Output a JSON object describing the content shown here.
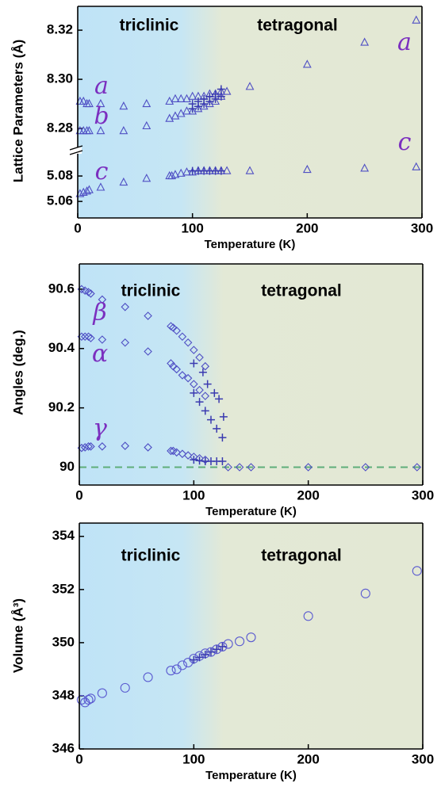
{
  "chart_data": [
    {
      "type": "scatter",
      "ylabel": "Lattice Parameters (Å)",
      "xlim": [
        0,
        300
      ],
      "ylim": [
        8.271,
        8.3297
      ],
      "yticks": [
        8.28,
        {
          "value": 8.3,
          "label": "8.30"
        },
        8.32
      ],
      "regions": [
        "triclinic",
        "tetragonal"
      ],
      "transition": 120,
      "annotations": [
        "a",
        "b",
        "a"
      ],
      "series": [
        {
          "marker": "triangle",
          "color": "#4f4fc4",
          "x": [
            2,
            5,
            8,
            10,
            20,
            40,
            60,
            80,
            85,
            90,
            95,
            100,
            105,
            110,
            115,
            120,
            125,
            130,
            150,
            200,
            250,
            295
          ],
          "values": [
            8.291,
            8.291,
            8.29,
            8.29,
            8.29,
            8.289,
            8.29,
            8.291,
            8.292,
            8.292,
            8.292,
            8.293,
            8.293,
            8.293,
            8.294,
            8.294,
            8.295,
            8.295,
            8.297,
            8.306,
            8.315,
            8.324
          ]
        },
        {
          "marker": "triangle",
          "color": "#4f4fc4",
          "x": [
            2,
            5,
            8,
            10,
            20,
            40,
            60,
            80,
            85,
            90,
            95,
            100,
            105,
            110,
            115,
            120,
            125
          ],
          "values": [
            8.279,
            8.279,
            8.279,
            8.279,
            8.279,
            8.279,
            8.281,
            8.284,
            8.285,
            8.286,
            8.287,
            8.287,
            8.288,
            8.289,
            8.29,
            8.291,
            8.293
          ]
        },
        {
          "marker": "plus",
          "color": "#3a3ab0",
          "x": [
            100,
            105,
            110,
            115,
            120,
            125
          ],
          "values": [
            8.29,
            8.291,
            8.292,
            8.293,
            8.294,
            8.296
          ]
        },
        {
          "marker": "plus",
          "color": "#3a3ab0",
          "x": [
            100,
            105,
            110,
            115,
            120,
            125
          ],
          "values": [
            8.288,
            8.289,
            8.29,
            8.291,
            8.292,
            8.293
          ]
        }
      ]
    },
    {
      "type": "scatter",
      "xlabel": "Temperature (K)",
      "xlim": [
        0,
        300
      ],
      "xticks": [
        0,
        100,
        200,
        300
      ],
      "ylim": [
        5.047,
        5.1
      ],
      "yticks": [
        5.06,
        5.08
      ],
      "transition": 120,
      "annotations": [
        "c",
        "c"
      ],
      "series": [
        {
          "marker": "triangle",
          "color": "#4f4fc4",
          "x": [
            2,
            5,
            8,
            10,
            20,
            40,
            60,
            80,
            82,
            85,
            90,
            95,
            100,
            105,
            110,
            115,
            120,
            125,
            130,
            150,
            200,
            250,
            295
          ],
          "values": [
            5.066,
            5.067,
            5.068,
            5.069,
            5.071,
            5.075,
            5.078,
            5.08,
            5.08,
            5.081,
            5.082,
            5.083,
            5.083,
            5.084,
            5.084,
            5.084,
            5.084,
            5.084,
            5.084,
            5.084,
            5.085,
            5.086,
            5.087
          ]
        },
        {
          "marker": "plus",
          "color": "#3a3ab0",
          "x": [
            100,
            105,
            110,
            115,
            120,
            125
          ],
          "values": [
            5.084,
            5.084,
            5.084,
            5.084,
            5.084,
            5.084
          ]
        }
      ]
    },
    {
      "type": "scatter",
      "ylabel": "Angles (deg.)",
      "xlabel": "Temperature (K)",
      "xlim": [
        0,
        300
      ],
      "xticks": [
        0,
        100,
        200,
        300
      ],
      "ylim": [
        89.94,
        90.685
      ],
      "yticks": [
        90,
        90.2,
        90.4,
        90.6
      ],
      "reference_line": 90,
      "reference_color": "#5fae7a",
      "regions": [
        "triclinic",
        "tetragonal"
      ],
      "transition": 120,
      "annotations": [
        "β",
        "α",
        "γ"
      ],
      "series": [
        {
          "marker": "diamond",
          "color": "#4f4fc4",
          "x": [
            2,
            5,
            8,
            10,
            20,
            40,
            60,
            80,
            82,
            85,
            90,
            95,
            100,
            105,
            110
          ],
          "values": [
            90.6,
            90.595,
            90.59,
            90.585,
            90.565,
            90.54,
            90.51,
            90.475,
            90.47,
            90.46,
            90.44,
            90.42,
            90.395,
            90.37,
            90.34
          ]
        },
        {
          "marker": "diamond",
          "color": "#4f4fc4",
          "x": [
            2,
            5,
            8,
            10,
            20,
            40,
            60,
            80,
            82,
            85,
            90,
            95,
            100,
            105,
            110
          ],
          "values": [
            90.44,
            90.44,
            90.44,
            90.435,
            90.43,
            90.42,
            90.39,
            90.35,
            90.34,
            90.33,
            90.31,
            90.3,
            90.28,
            90.26,
            90.24
          ]
        },
        {
          "marker": "diamond",
          "color": "#4f4fc4",
          "x": [
            2,
            5,
            8,
            10,
            20,
            40,
            60,
            80,
            82,
            85,
            90,
            95,
            100,
            105,
            110
          ],
          "values": [
            90.065,
            90.067,
            90.07,
            90.07,
            90.07,
            90.072,
            90.067,
            90.055,
            90.055,
            90.05,
            90.045,
            90.04,
            90.035,
            90.03,
            90.025
          ]
        },
        {
          "marker": "diamond",
          "color": "#4f4fc4",
          "x": [
            130,
            140,
            150,
            200,
            250,
            295
          ],
          "values": [
            90,
            90,
            90,
            90,
            90,
            90
          ]
        },
        {
          "marker": "plus",
          "color": "#3a3ab0",
          "x": [
            100,
            108,
            112,
            118,
            122,
            126
          ],
          "values": [
            90.35,
            90.32,
            90.28,
            90.25,
            90.23,
            90.17
          ]
        },
        {
          "marker": "plus",
          "color": "#3a3ab0",
          "x": [
            100,
            105,
            110,
            115,
            120,
            125
          ],
          "values": [
            90.25,
            90.22,
            90.19,
            90.16,
            90.13,
            90.1
          ]
        },
        {
          "marker": "plus",
          "color": "#3a3ab0",
          "x": [
            100,
            105,
            110,
            115,
            120,
            125
          ],
          "values": [
            90.025,
            90.022,
            90.02,
            90.02,
            90.02,
            90.02
          ]
        }
      ]
    },
    {
      "type": "scatter",
      "ylabel": "Volume (Å³)",
      "xlabel": "Temperature (K)",
      "xlim": [
        0,
        300
      ],
      "xticks": [
        0,
        100,
        200,
        300
      ],
      "ylim": [
        346,
        354.5
      ],
      "yticks": [
        346,
        348,
        350,
        352,
        354
      ],
      "regions": [
        "triclinic",
        "tetragonal"
      ],
      "transition": 120,
      "series": [
        {
          "marker": "circle",
          "color": "#5a5ad0",
          "x": [
            2,
            5,
            8,
            10,
            20,
            40,
            60,
            80,
            85,
            90,
            95,
            100,
            105,
            110,
            115,
            120,
            125,
            130,
            140,
            150,
            200,
            250,
            295
          ],
          "values": [
            347.85,
            347.75,
            347.85,
            347.9,
            348.1,
            348.3,
            348.7,
            348.95,
            349.0,
            349.15,
            349.25,
            349.4,
            349.5,
            349.6,
            349.65,
            349.75,
            349.85,
            349.95,
            350.05,
            350.2,
            351.0,
            351.85,
            352.7
          ]
        },
        {
          "marker": "plus",
          "color": "#3a3ab0",
          "x": [
            100,
            105,
            110,
            115,
            120,
            125
          ],
          "values": [
            349.35,
            349.45,
            349.55,
            349.65,
            349.75,
            349.85
          ]
        }
      ]
    }
  ]
}
